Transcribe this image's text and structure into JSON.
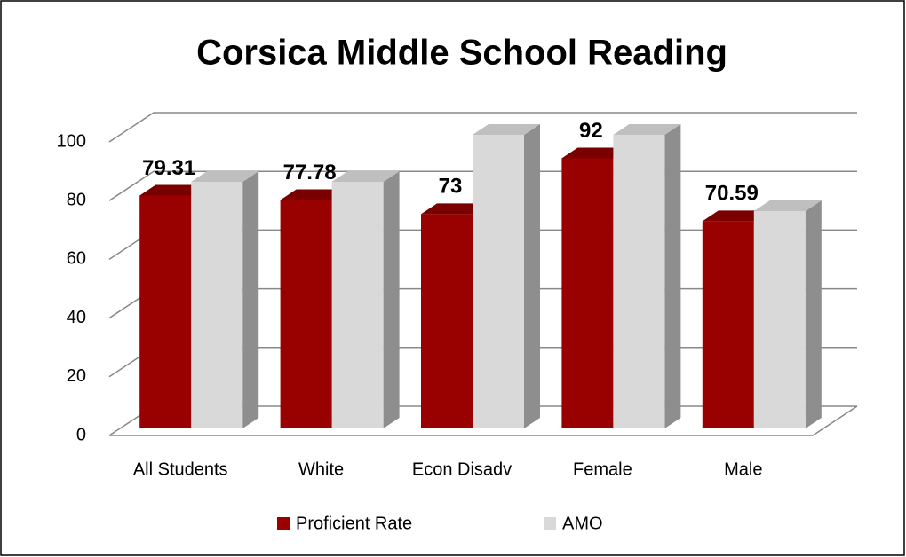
{
  "chart_data": {
    "type": "bar3d",
    "title": "Corsica Middle School Reading",
    "categories": [
      "All Students",
      "White",
      "Econ Disadv",
      "Female",
      "Male"
    ],
    "series": [
      {
        "name": "Proficient Rate",
        "color": "#990000",
        "values": [
          79.31,
          77.78,
          73,
          92,
          70.59
        ]
      },
      {
        "name": "AMO",
        "color": "#d9d9d9",
        "values": [
          84,
          84,
          100,
          100,
          74
        ]
      }
    ],
    "data_labels_series": "Proficient Rate",
    "ylim": [
      0,
      100
    ],
    "yticks": [
      0,
      20,
      40,
      60,
      80,
      100
    ],
    "grid": true,
    "legend": "bottom"
  }
}
